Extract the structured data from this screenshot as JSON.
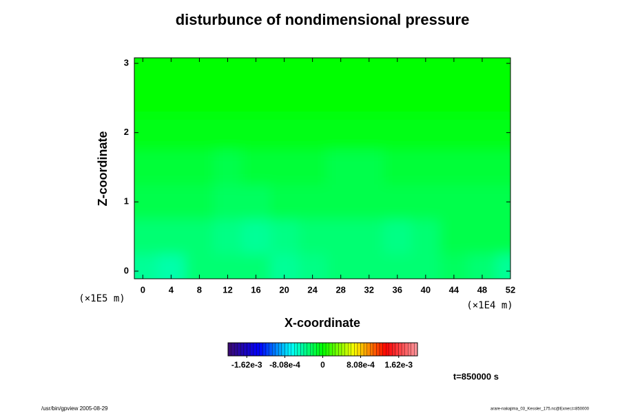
{
  "chart_data": {
    "type": "heatmap",
    "title": "disturbunce of nondimensional pressure",
    "x_label": "X-coordinate",
    "y_label": "Z-coordinate",
    "x_unit": "(×1E4 m)",
    "y_unit": "(×1E5 m)",
    "time_label": "t=850000 s",
    "footer_left": "/usr/bin/gpview 2005-08-29",
    "footer_right": "arare-nakajima_03_Kessler_175.nc@Exner,t=850000",
    "xlim": [
      -1.2,
      52
    ],
    "ylim": [
      -0.11,
      3.08
    ],
    "xticks": [
      0,
      4,
      8,
      12,
      16,
      20,
      24,
      28,
      32,
      36,
      40,
      44,
      48,
      52
    ],
    "yticks": [
      0,
      1,
      2,
      3
    ],
    "x": [
      0,
      4,
      8,
      12,
      16,
      20,
      24,
      28,
      32,
      36,
      40,
      44,
      48,
      52
    ],
    "y": [
      0,
      0.5,
      1,
      1.5,
      2,
      2.5,
      3
    ],
    "z": [
      [
        -0.0004,
        -0.00045,
        -0.0003,
        -0.0003,
        -0.0003,
        -0.0004,
        -0.00035,
        -0.0003,
        -0.0003,
        -0.0003,
        -0.0003,
        -0.00025,
        -0.0003,
        -0.0004
      ],
      [
        -0.0003,
        -0.0003,
        -0.0003,
        -0.00035,
        -0.0004,
        -0.00035,
        -0.0003,
        -0.0003,
        -0.0003,
        -0.00035,
        -0.0003,
        -0.0002,
        -0.0002,
        -0.0002
      ],
      [
        -0.0002,
        -0.0002,
        -0.0002,
        -0.00025,
        -0.00025,
        -0.0002,
        -0.0002,
        -0.0002,
        -0.0002,
        -0.0002,
        -0.0002,
        -0.0002,
        -0.0002,
        -0.0002
      ],
      [
        -0.00015,
        -0.00015,
        -0.00015,
        -0.0002,
        -0.00015,
        -0.00015,
        -0.00015,
        -0.0002,
        -0.0002,
        -0.00015,
        -0.00015,
        -0.00015,
        -0.00015,
        -0.00015
      ],
      [
        -5e-05,
        -5e-05,
        -5e-05,
        -5e-05,
        -5e-05,
        -5e-05,
        -5e-05,
        -5e-05,
        -5e-05,
        -5e-05,
        -5e-05,
        -5e-05,
        -5e-05,
        -5e-05
      ],
      [
        0,
        0,
        0,
        0,
        0,
        0,
        0,
        0,
        0,
        0,
        0,
        0,
        0,
        0
      ],
      [
        0,
        0,
        0,
        0,
        0,
        0,
        0,
        0,
        0,
        0,
        0,
        0,
        0,
        0
      ]
    ],
    "clim": [
      -0.00202,
      0.00202
    ],
    "colormap": [
      "#3c0a6e",
      "#0000ff",
      "#00ffff",
      "#00ff00",
      "#ffff00",
      "#ff0000",
      "#ff9aa0"
    ],
    "cticks": [
      {
        "value": -0.00162,
        "label": "-1.62e-3"
      },
      {
        "value": -0.000808,
        "label": "-8.08e-4"
      },
      0,
      {
        "value": 0.000808,
        "label": "8.08e-4"
      },
      {
        "value": 0.00162,
        "label": "1.62e-3"
      }
    ]
  }
}
